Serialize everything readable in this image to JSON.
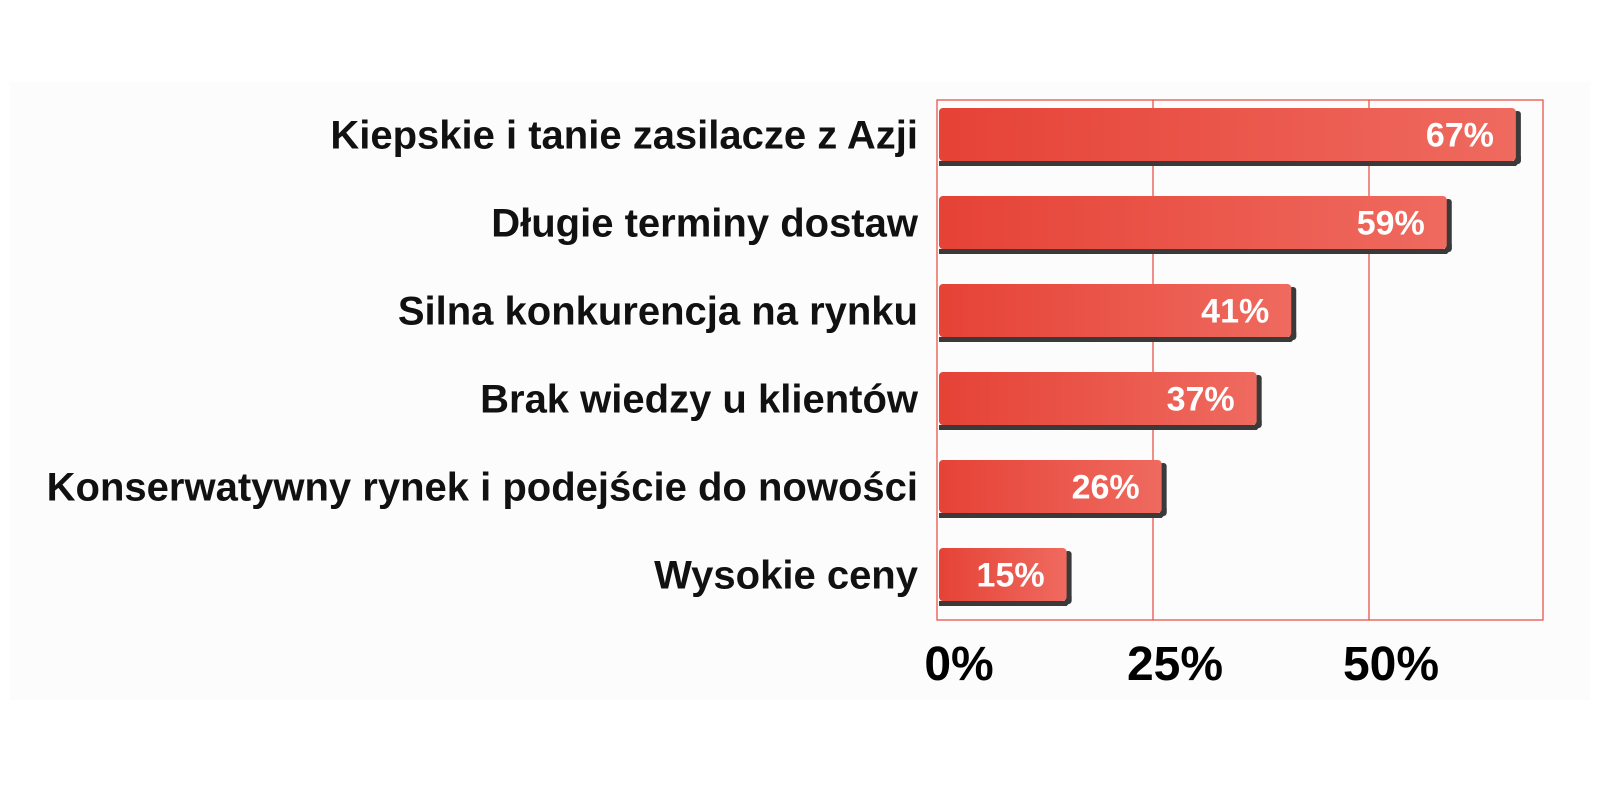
{
  "chart_data": {
    "type": "bar",
    "orientation": "horizontal",
    "categories": [
      "Kiepskie i tanie zasilacze z Azji",
      "Długie terminy dostaw",
      "Silna konkurencja na rynku",
      "Brak wiedzy u klientów",
      "Konserwatywny rynek i podejście do nowości",
      "Wysokie ceny"
    ],
    "values": [
      67,
      59,
      41,
      37,
      26,
      15
    ],
    "data_labels": [
      "67%",
      "59%",
      "41%",
      "37%",
      "26%",
      "15%"
    ],
    "x_ticks": [
      0,
      25,
      50
    ],
    "x_tick_labels": [
      "0%",
      "25%",
      "50%"
    ],
    "xlim": [
      0,
      70
    ],
    "grid": true,
    "legend": "none",
    "colors": {
      "bar": "#e64236",
      "bar_light": "#ef6a5f",
      "bar_shadow": "#3a3a3a",
      "grid": "#e8453c",
      "plot_background": "#fcfcfc"
    }
  }
}
